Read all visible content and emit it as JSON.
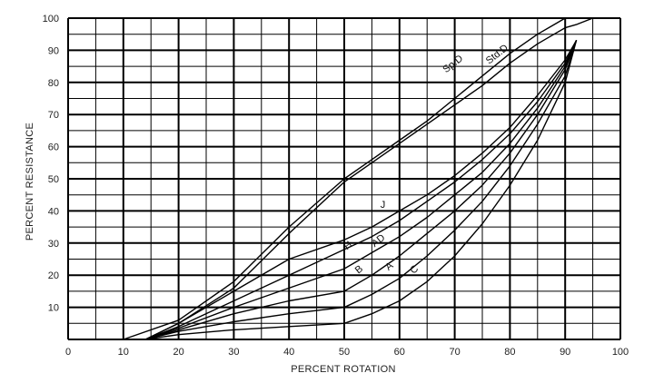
{
  "chart_data": {
    "type": "line",
    "xlabel": "PERCENT ROTATION",
    "ylabel": "PERCENT RESISTANCE",
    "xlim": [
      0,
      100
    ],
    "ylim": [
      0,
      100
    ],
    "grid": true,
    "x_major_ticks": [
      0,
      10,
      20,
      30,
      40,
      50,
      60,
      70,
      80,
      90,
      100
    ],
    "x_minor_step": 5,
    "y_major_ticks": [
      10,
      20,
      30,
      40,
      50,
      60,
      70,
      80,
      90,
      100
    ],
    "y_minor_step": 5,
    "series": [
      {
        "name": "Sp.D",
        "points": [
          [
            10,
            0
          ],
          [
            20,
            6
          ],
          [
            30,
            18
          ],
          [
            40,
            35
          ],
          [
            50,
            50
          ],
          [
            55,
            56
          ],
          [
            60,
            62
          ],
          [
            65,
            68
          ],
          [
            70,
            75
          ],
          [
            75,
            82
          ],
          [
            80,
            89
          ],
          [
            85,
            95
          ],
          [
            88,
            98
          ],
          [
            90,
            100
          ]
        ]
      },
      {
        "name": "Std.D",
        "points": [
          [
            14,
            0
          ],
          [
            20,
            5
          ],
          [
            30,
            16
          ],
          [
            40,
            33
          ],
          [
            50,
            49
          ],
          [
            55,
            55
          ],
          [
            60,
            61
          ],
          [
            65,
            67
          ],
          [
            70,
            73
          ],
          [
            75,
            79
          ],
          [
            80,
            86
          ],
          [
            85,
            92
          ],
          [
            88,
            95
          ],
          [
            90,
            97
          ],
          [
            92,
            98
          ],
          [
            95,
            100
          ]
        ]
      },
      {
        "name": "J",
        "points": [
          [
            14,
            0
          ],
          [
            20,
            5
          ],
          [
            30,
            15
          ],
          [
            40,
            25
          ],
          [
            50,
            31
          ],
          [
            55,
            35
          ],
          [
            60,
            40
          ],
          [
            65,
            45
          ],
          [
            70,
            51
          ],
          [
            75,
            58
          ],
          [
            80,
            66
          ],
          [
            85,
            76
          ],
          [
            90,
            87
          ],
          [
            92,
            93
          ]
        ]
      },
      {
        "name": "H",
        "points": [
          [
            14,
            0
          ],
          [
            20,
            4
          ],
          [
            30,
            12
          ],
          [
            40,
            20
          ],
          [
            50,
            28
          ],
          [
            55,
            32
          ],
          [
            60,
            37
          ],
          [
            65,
            43
          ],
          [
            70,
            49
          ],
          [
            75,
            56
          ],
          [
            80,
            64
          ],
          [
            85,
            74
          ],
          [
            90,
            86
          ],
          [
            92,
            93
          ]
        ]
      },
      {
        "name": "AD",
        "points": [
          [
            14,
            0
          ],
          [
            20,
            3.5
          ],
          [
            30,
            10
          ],
          [
            40,
            16
          ],
          [
            50,
            22
          ],
          [
            55,
            27
          ],
          [
            60,
            32
          ],
          [
            65,
            38
          ],
          [
            70,
            45
          ],
          [
            75,
            52
          ],
          [
            80,
            61
          ],
          [
            85,
            72
          ],
          [
            90,
            85
          ],
          [
            92,
            93
          ]
        ]
      },
      {
        "name": "B",
        "points": [
          [
            14,
            0
          ],
          [
            20,
            3
          ],
          [
            30,
            8
          ],
          [
            40,
            12
          ],
          [
            50,
            15
          ],
          [
            55,
            20
          ],
          [
            60,
            26
          ],
          [
            65,
            33
          ],
          [
            70,
            40
          ],
          [
            75,
            48
          ],
          [
            80,
            58
          ],
          [
            85,
            70
          ],
          [
            90,
            84
          ],
          [
            92,
            93
          ]
        ]
      },
      {
        "name": "A",
        "points": [
          [
            14,
            0
          ],
          [
            20,
            2.5
          ],
          [
            30,
            5.5
          ],
          [
            40,
            8
          ],
          [
            50,
            10
          ],
          [
            55,
            14
          ],
          [
            60,
            19
          ],
          [
            65,
            26
          ],
          [
            70,
            34
          ],
          [
            75,
            43
          ],
          [
            80,
            54
          ],
          [
            85,
            67
          ],
          [
            90,
            82
          ],
          [
            92,
            93
          ]
        ]
      },
      {
        "name": "C",
        "points": [
          [
            14,
            0
          ],
          [
            20,
            1.5
          ],
          [
            30,
            3
          ],
          [
            40,
            4
          ],
          [
            50,
            5
          ],
          [
            55,
            8
          ],
          [
            60,
            12
          ],
          [
            65,
            18
          ],
          [
            70,
            26
          ],
          [
            75,
            36
          ],
          [
            80,
            48
          ],
          [
            85,
            62
          ],
          [
            90,
            80
          ],
          [
            92,
            93
          ]
        ]
      }
    ],
    "annotations": [
      {
        "text": "Sp.D",
        "x": 70,
        "y": 85,
        "angle": -38
      },
      {
        "text": "Std.D",
        "x": 78,
        "y": 88,
        "angle": -38
      },
      {
        "text": "J",
        "x": 57,
        "y": 41,
        "angle": 0
      },
      {
        "text": "H",
        "x": 51,
        "y": 28.5,
        "angle": -38
      },
      {
        "text": "AD",
        "x": 56.5,
        "y": 30,
        "angle": -38
      },
      {
        "text": "B",
        "x": 53,
        "y": 21,
        "angle": -38
      },
      {
        "text": "A",
        "x": 58.5,
        "y": 22,
        "angle": -38
      },
      {
        "text": "C",
        "x": 63,
        "y": 21,
        "angle": -38
      }
    ]
  }
}
